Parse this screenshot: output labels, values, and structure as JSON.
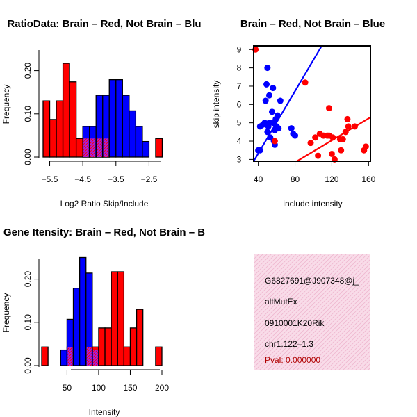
{
  "colors": {
    "red": "#ff0000",
    "blue": "#0000ff",
    "overlap": "#a020f0",
    "info_bg": "#f7d6e6",
    "pval": "#b00000"
  },
  "chart_data": [
    {
      "type": "bar",
      "subtype": "histogram",
      "title": "RatioData: Brain – Red, Not Brain – Blu",
      "xlabel": "Log2 Ratio Skip/Include",
      "ylabel": "Frequency",
      "xlim": [
        -5.7,
        -1.9
      ],
      "ylim": [
        0,
        0.25
      ],
      "xticks": [
        -5.5,
        -4.5,
        -3.5,
        -2.5
      ],
      "xtick_labels": [
        "−5.5",
        "−4.5",
        "−3.5",
        "−2.5"
      ],
      "yticks": [
        0,
        0.1,
        0.2
      ],
      "ytick_labels": [
        "0.00",
        "0.10",
        "0.20"
      ],
      "bin_width": 0.2,
      "series": [
        {
          "name": "Brain",
          "color": "red",
          "bins": [
            [
              -5.6,
              0.13
            ],
            [
              -5.4,
              0.087
            ],
            [
              -5.2,
              0.13
            ],
            [
              -5.0,
              0.217
            ],
            [
              -4.8,
              0.174
            ],
            [
              -4.6,
              0.043
            ],
            [
              -4.4,
              0.043
            ],
            [
              -4.2,
              0.043
            ],
            [
              -4.0,
              0.043
            ],
            [
              -3.8,
              0.043
            ],
            [
              -2.2,
              0.043
            ]
          ]
        },
        {
          "name": "Not Brain",
          "color": "blue",
          "bins": [
            [
              -4.4,
              0.071
            ],
            [
              -4.2,
              0.071
            ],
            [
              -4.0,
              0.143
            ],
            [
              -3.8,
              0.143
            ],
            [
              -3.6,
              0.179
            ],
            [
              -3.4,
              0.179
            ],
            [
              -3.2,
              0.143
            ],
            [
              -3.0,
              0.107
            ],
            [
              -2.8,
              0.071
            ],
            [
              -2.6,
              0.036
            ]
          ]
        }
      ]
    },
    {
      "type": "scatter",
      "title": "Brain – Red, Not Brain – Blue",
      "xlabel": "include intensity",
      "ylabel": "skip intensity",
      "xlim": [
        35,
        162
      ],
      "ylim": [
        2.9,
        9.2
      ],
      "xticks": [
        40,
        80,
        120,
        160
      ],
      "yticks": [
        3,
        4,
        5,
        6,
        7,
        8,
        9
      ],
      "series": [
        {
          "name": "Not Brain",
          "color": "blue",
          "points": [
            [
              40,
              3.5
            ],
            [
              42,
              3.5
            ],
            [
              42,
              4.8
            ],
            [
              45,
              4.9
            ],
            [
              47,
              5.0
            ],
            [
              48,
              6.2
            ],
            [
              49,
              7.1
            ],
            [
              50,
              8.0
            ],
            [
              50,
              4.5
            ],
            [
              51,
              4.8
            ],
            [
              52,
              6.5
            ],
            [
              52,
              5.0
            ],
            [
              53,
              4.2
            ],
            [
              55,
              5.6
            ],
            [
              56,
              6.9
            ],
            [
              56,
              5.0
            ],
            [
              57,
              4.0
            ],
            [
              58,
              3.8
            ],
            [
              58,
              4.6
            ],
            [
              59,
              5.2
            ],
            [
              60,
              4.8
            ],
            [
              61,
              5.4
            ],
            [
              62,
              4.7
            ],
            [
              64,
              6.2
            ],
            [
              76,
              4.7
            ],
            [
              78,
              4.4
            ],
            [
              80,
              4.3
            ]
          ]
        },
        {
          "name": "Brain",
          "color": "red",
          "points": [
            [
              37,
              9.0
            ],
            [
              58,
              4.0
            ],
            [
              91,
              7.2
            ],
            [
              97,
              3.9
            ],
            [
              102,
              4.2
            ],
            [
              105,
              3.2
            ],
            [
              107,
              4.4
            ],
            [
              111,
              4.3
            ],
            [
              115,
              4.3
            ],
            [
              117,
              5.8
            ],
            [
              117,
              4.3
            ],
            [
              120,
              3.3
            ],
            [
              121,
              4.2
            ],
            [
              123,
              3.0
            ],
            [
              129,
              4.1
            ],
            [
              130,
              3.5
            ],
            [
              132,
              4.1
            ],
            [
              135,
              4.5
            ],
            [
              137,
              5.2
            ],
            [
              138,
              4.8
            ],
            [
              145,
              4.8
            ],
            [
              155,
              3.5
            ],
            [
              157,
              3.7
            ]
          ]
        }
      ],
      "fit_lines": [
        {
          "name": "Not Brain",
          "color": "blue",
          "x": [
            35,
            109
          ],
          "y": [
            2.9,
            9.2
          ]
        },
        {
          "name": "Brain",
          "color": "red",
          "x": [
            82,
            162
          ],
          "y": [
            2.9,
            5.3
          ]
        }
      ]
    },
    {
      "type": "bar",
      "subtype": "histogram",
      "title": "Gene Itensity: Brain – Red, Not Brain – B",
      "xlabel": "Intensity",
      "ylabel": "Frequency",
      "xlim": [
        10,
        200
      ],
      "ylim": [
        0,
        0.25
      ],
      "xticks": [
        50,
        100,
        150,
        200
      ],
      "xtick_labels": [
        "50",
        "100",
        "150",
        "200"
      ],
      "yticks": [
        0,
        0.1,
        0.2
      ],
      "ytick_labels": [
        "0.00",
        "0.10",
        "0.20"
      ],
      "bin_width": 10,
      "series": [
        {
          "name": "Brain",
          "color": "red",
          "bins": [
            [
              15,
              0.043
            ],
            [
              55,
              0.043
            ],
            [
              85,
              0.043
            ],
            [
              95,
              0.043
            ],
            [
              105,
              0.087
            ],
            [
              115,
              0.087
            ],
            [
              125,
              0.217
            ],
            [
              135,
              0.217
            ],
            [
              145,
              0.043
            ],
            [
              155,
              0.087
            ],
            [
              165,
              0.13
            ],
            [
              195,
              0.043
            ]
          ]
        },
        {
          "name": "Not Brain",
          "color": "blue",
          "bins": [
            [
              45,
              0.036
            ],
            [
              55,
              0.107
            ],
            [
              65,
              0.179
            ],
            [
              75,
              0.25
            ],
            [
              85,
              0.214
            ],
            [
              95,
              0.036
            ]
          ]
        }
      ]
    }
  ],
  "info": {
    "id": "G6827691@J907348@j_",
    "type": "altMutEx",
    "gene": "0910001K20Rik",
    "location": "chr1.122–1.3",
    "pval": "Pval: 0.000000"
  }
}
